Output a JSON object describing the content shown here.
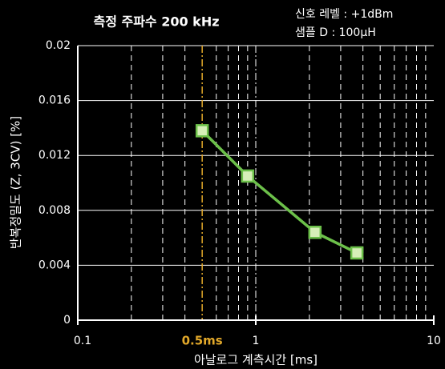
{
  "chart_data": {
    "type": "line",
    "title": "측정 주파수  200 kHz",
    "annotations": [
      "신호 레벨 : +1dBm",
      "샘플 D : 100μH"
    ],
    "x_label": "아날로그 계측시간 [ms]",
    "y_label": "반복정밀도 (Z, 3CV) [%]",
    "x": [
      0.5,
      0.9,
      2.15,
      3.7
    ],
    "values": [
      0.0138,
      0.0105,
      0.0064,
      0.0049
    ],
    "color": "#6cc04a",
    "marker_fill": "#d6efb8",
    "log_x": true,
    "xlim": [
      0.1,
      10
    ],
    "xticks": [
      0.1,
      1,
      10
    ],
    "x_minor_grid": [
      0.2,
      0.3,
      0.4,
      0.6,
      0.7,
      0.8,
      0.9,
      2,
      3,
      4,
      5,
      6,
      7,
      8,
      9
    ],
    "highlight": {
      "value": 0.5,
      "label": "0.5ms",
      "color": "#e3a92a"
    },
    "ylim": [
      0,
      0.02
    ],
    "yticks": [
      0,
      0.004,
      0.008,
      0.012,
      0.016,
      0.02
    ],
    "grid": true
  }
}
